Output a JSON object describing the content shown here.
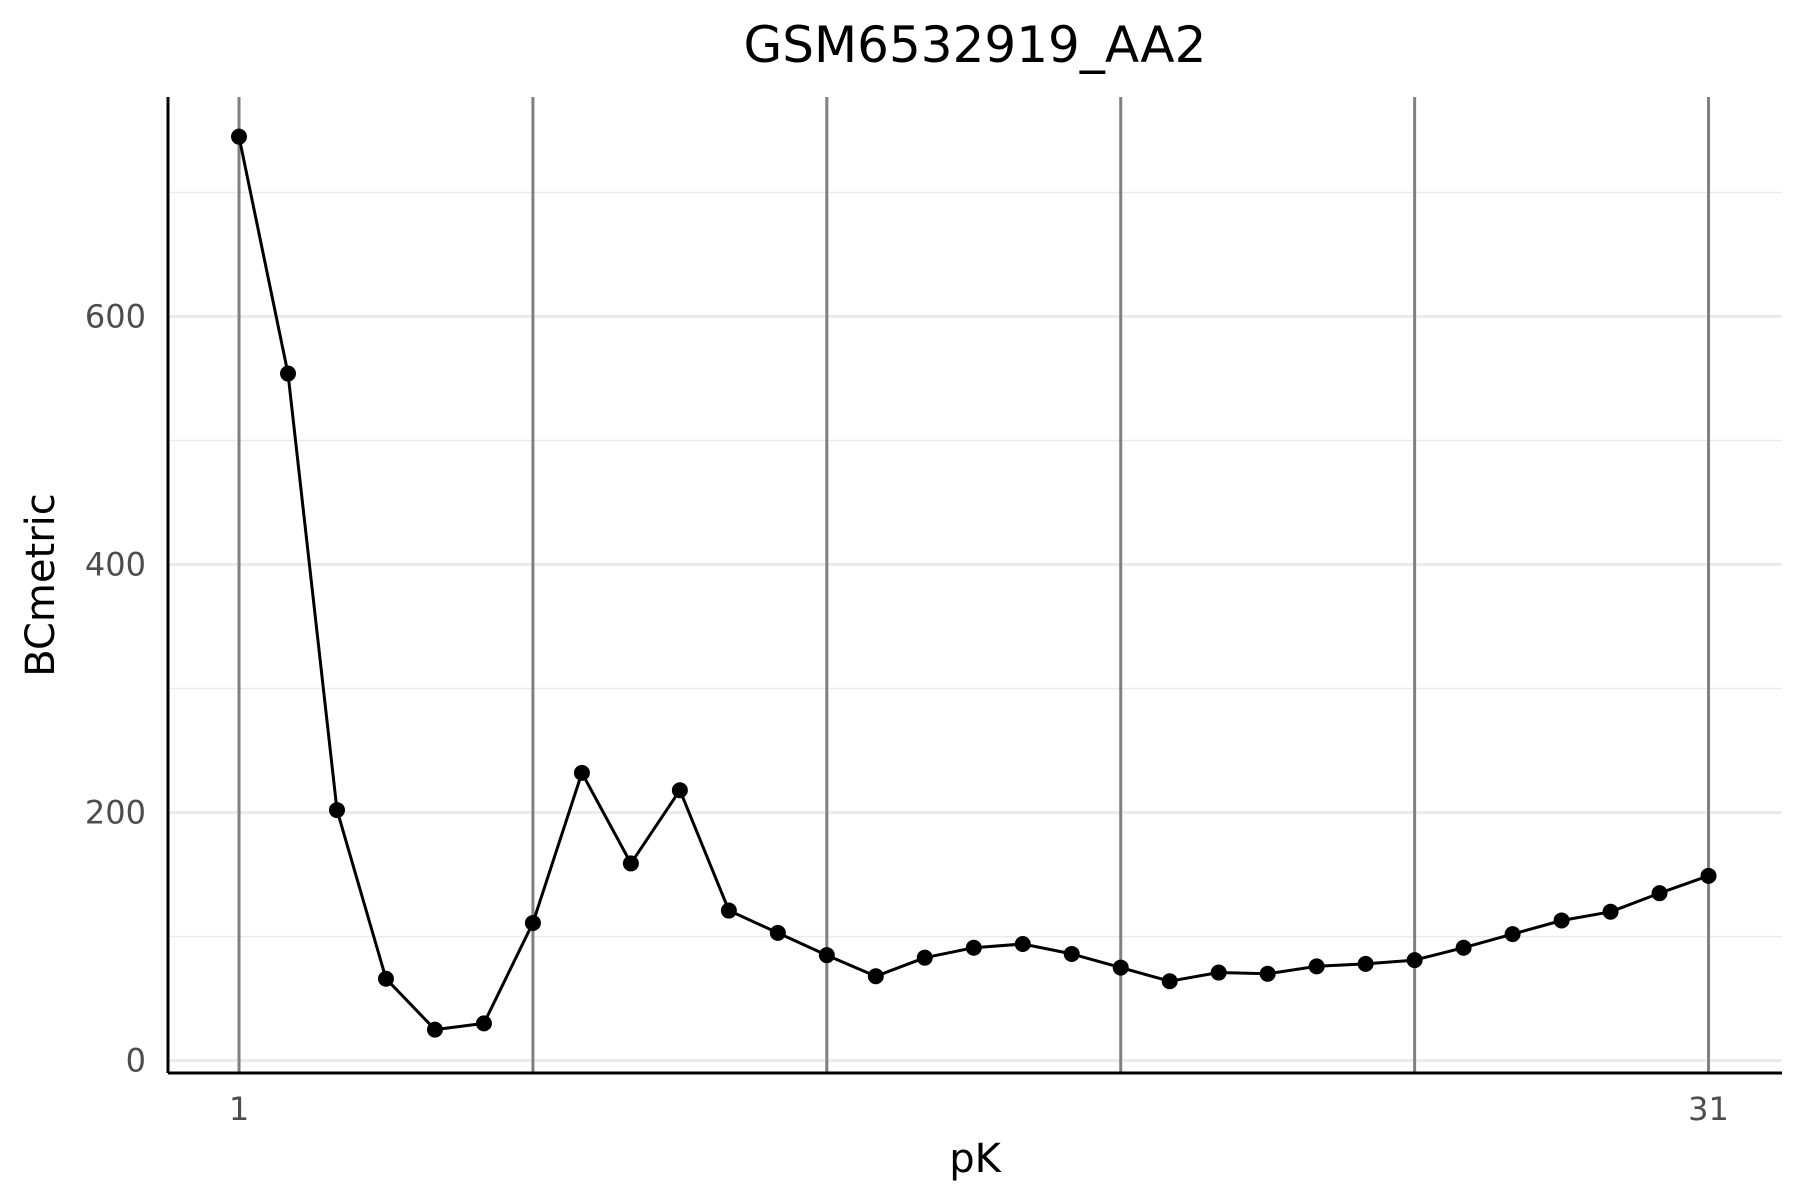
{
  "chart_data": {
    "type": "line",
    "title": "GSM6532919_AA2",
    "xlabel": "pK",
    "ylabel": "BCmetric",
    "x_tick_labels": [
      {
        "x": 1,
        "label": "1"
      },
      {
        "x": 31,
        "label": "31"
      }
    ],
    "y_ticks": [
      0,
      200,
      400,
      600
    ],
    "y_minor_ticks": [
      100,
      300,
      500,
      700
    ],
    "vlines_x": [
      1,
      7,
      13,
      19,
      25,
      31
    ],
    "xlim": [
      -0.45,
      32.5
    ],
    "ylim": [
      -10,
      777
    ],
    "grid": true,
    "series": [
      {
        "x": [
          1,
          2,
          3,
          4,
          5,
          6,
          7,
          8,
          9,
          10,
          11,
          12,
          13,
          14,
          15,
          16,
          17,
          18,
          19,
          20,
          21,
          22,
          23,
          24,
          25,
          26,
          27,
          28,
          29,
          30,
          31
        ],
        "values": [
          745,
          554,
          202,
          66,
          25,
          30,
          111,
          232,
          159,
          218,
          121,
          103,
          85,
          68,
          83,
          91,
          94,
          86,
          75,
          64,
          71,
          70,
          76,
          78,
          81,
          91,
          102,
          113,
          120,
          135,
          149
        ]
      }
    ],
    "colors": {
      "line": "#000000",
      "point": "#000000",
      "vline": "#808080",
      "grid": "#ebebeb",
      "axis": "#000000"
    }
  }
}
